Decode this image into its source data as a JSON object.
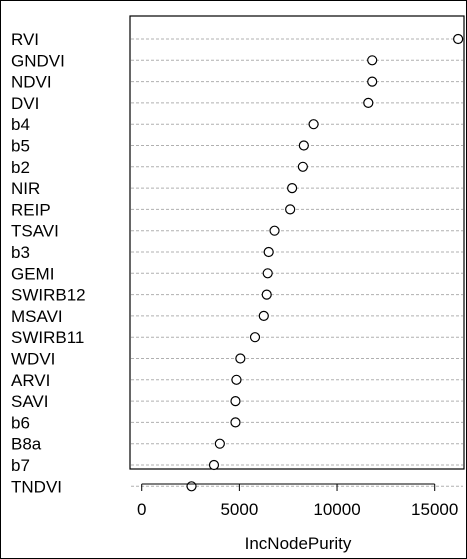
{
  "chart_data": {
    "type": "scatter",
    "title": "",
    "xlabel": "IncNodePurity",
    "ylabel": "",
    "xlim": [
      -600,
      16500
    ],
    "x_ticks": [
      0,
      5000,
      10000,
      15000
    ],
    "x_tick_labels": [
      "0",
      "5000",
      "10000",
      "15000"
    ],
    "grid": "dotted horizontal guide lines",
    "categories": [
      "RVI",
      "GNDVI",
      "NDVI",
      "DVI",
      "b4",
      "b5",
      "b2",
      "NIR",
      "REIP",
      "TSAVI",
      "b3",
      "GEMI",
      "SWIRB12",
      "MSAVI",
      "SWIRB11",
      "WDVI",
      "ARVI",
      "SAVI",
      "b6",
      "B8a",
      "b7",
      "TNDVI"
    ],
    "values": [
      16200,
      11800,
      11800,
      11600,
      8800,
      8300,
      8250,
      7700,
      7600,
      6800,
      6500,
      6450,
      6400,
      6250,
      5800,
      5050,
      4850,
      4800,
      4800,
      4000,
      3700,
      2550
    ]
  },
  "colors": {
    "points": "#000000",
    "guides": "#b0b0b0",
    "frame": "#000000"
  }
}
